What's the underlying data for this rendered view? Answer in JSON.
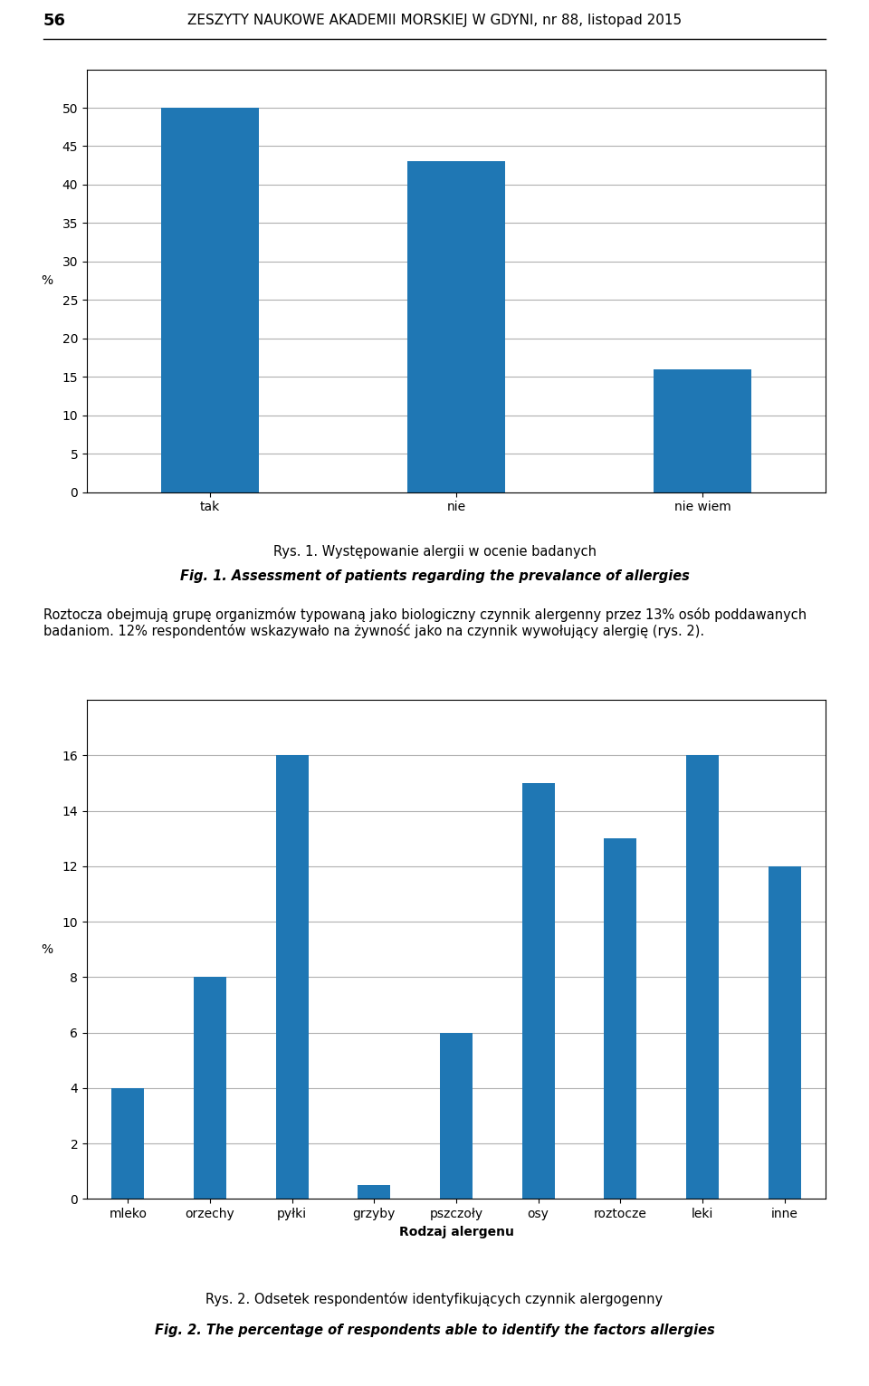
{
  "chart_data": [
    {
      "type": "bar",
      "title": "Rys. 1. Występowanie alergii w ocenie badanych",
      "subtitle": "Fig. 1. Assessment of patients regarding the prevalance of allergies",
      "annotations": [
        "56",
        "ZESZYTY NAUKOWE AKADEMII MORSKIEJ W GDYNI, nr 88, listopad 2015",
        "Roztocza obejmują grupę organizmów typowaną jako biologiczny czynnik alergenny przez 13% osób poddawanych badaniom. 12% respondentów wskazywało na żywność jako na czynnik wywołujący alergię (rys. 2)."
      ],
      "categories": [
        "tak",
        "nie",
        "nie wiem"
      ],
      "values": [
        50,
        43,
        16
      ],
      "ylabel": "%",
      "ylim": [
        0,
        55
      ],
      "yticks": [
        0,
        5,
        10,
        15,
        20,
        25,
        30,
        35,
        40,
        45,
        50
      ],
      "grid": true
    },
    {
      "type": "bar",
      "title": "Rys. 2. Odsetek respondentów identyfikujących czynnik alergogenny",
      "subtitle": "Fig. 2. The percentage of respondents able to identify the factors allergies",
      "categories": [
        "mleko",
        "orzechy",
        "pyłki",
        "grzyby",
        "pszczoły",
        "osy",
        "roztocze",
        "leki",
        "inne"
      ],
      "values": [
        4,
        8,
        16,
        0.5,
        6,
        15,
        13,
        16,
        12
      ],
      "ylabel": "%",
      "xlabel": "Rodzaj alergenu",
      "ylim": [
        0,
        18
      ],
      "yticks": [
        0,
        2,
        4,
        6,
        8,
        10,
        12,
        14,
        16
      ],
      "grid": true
    }
  ]
}
